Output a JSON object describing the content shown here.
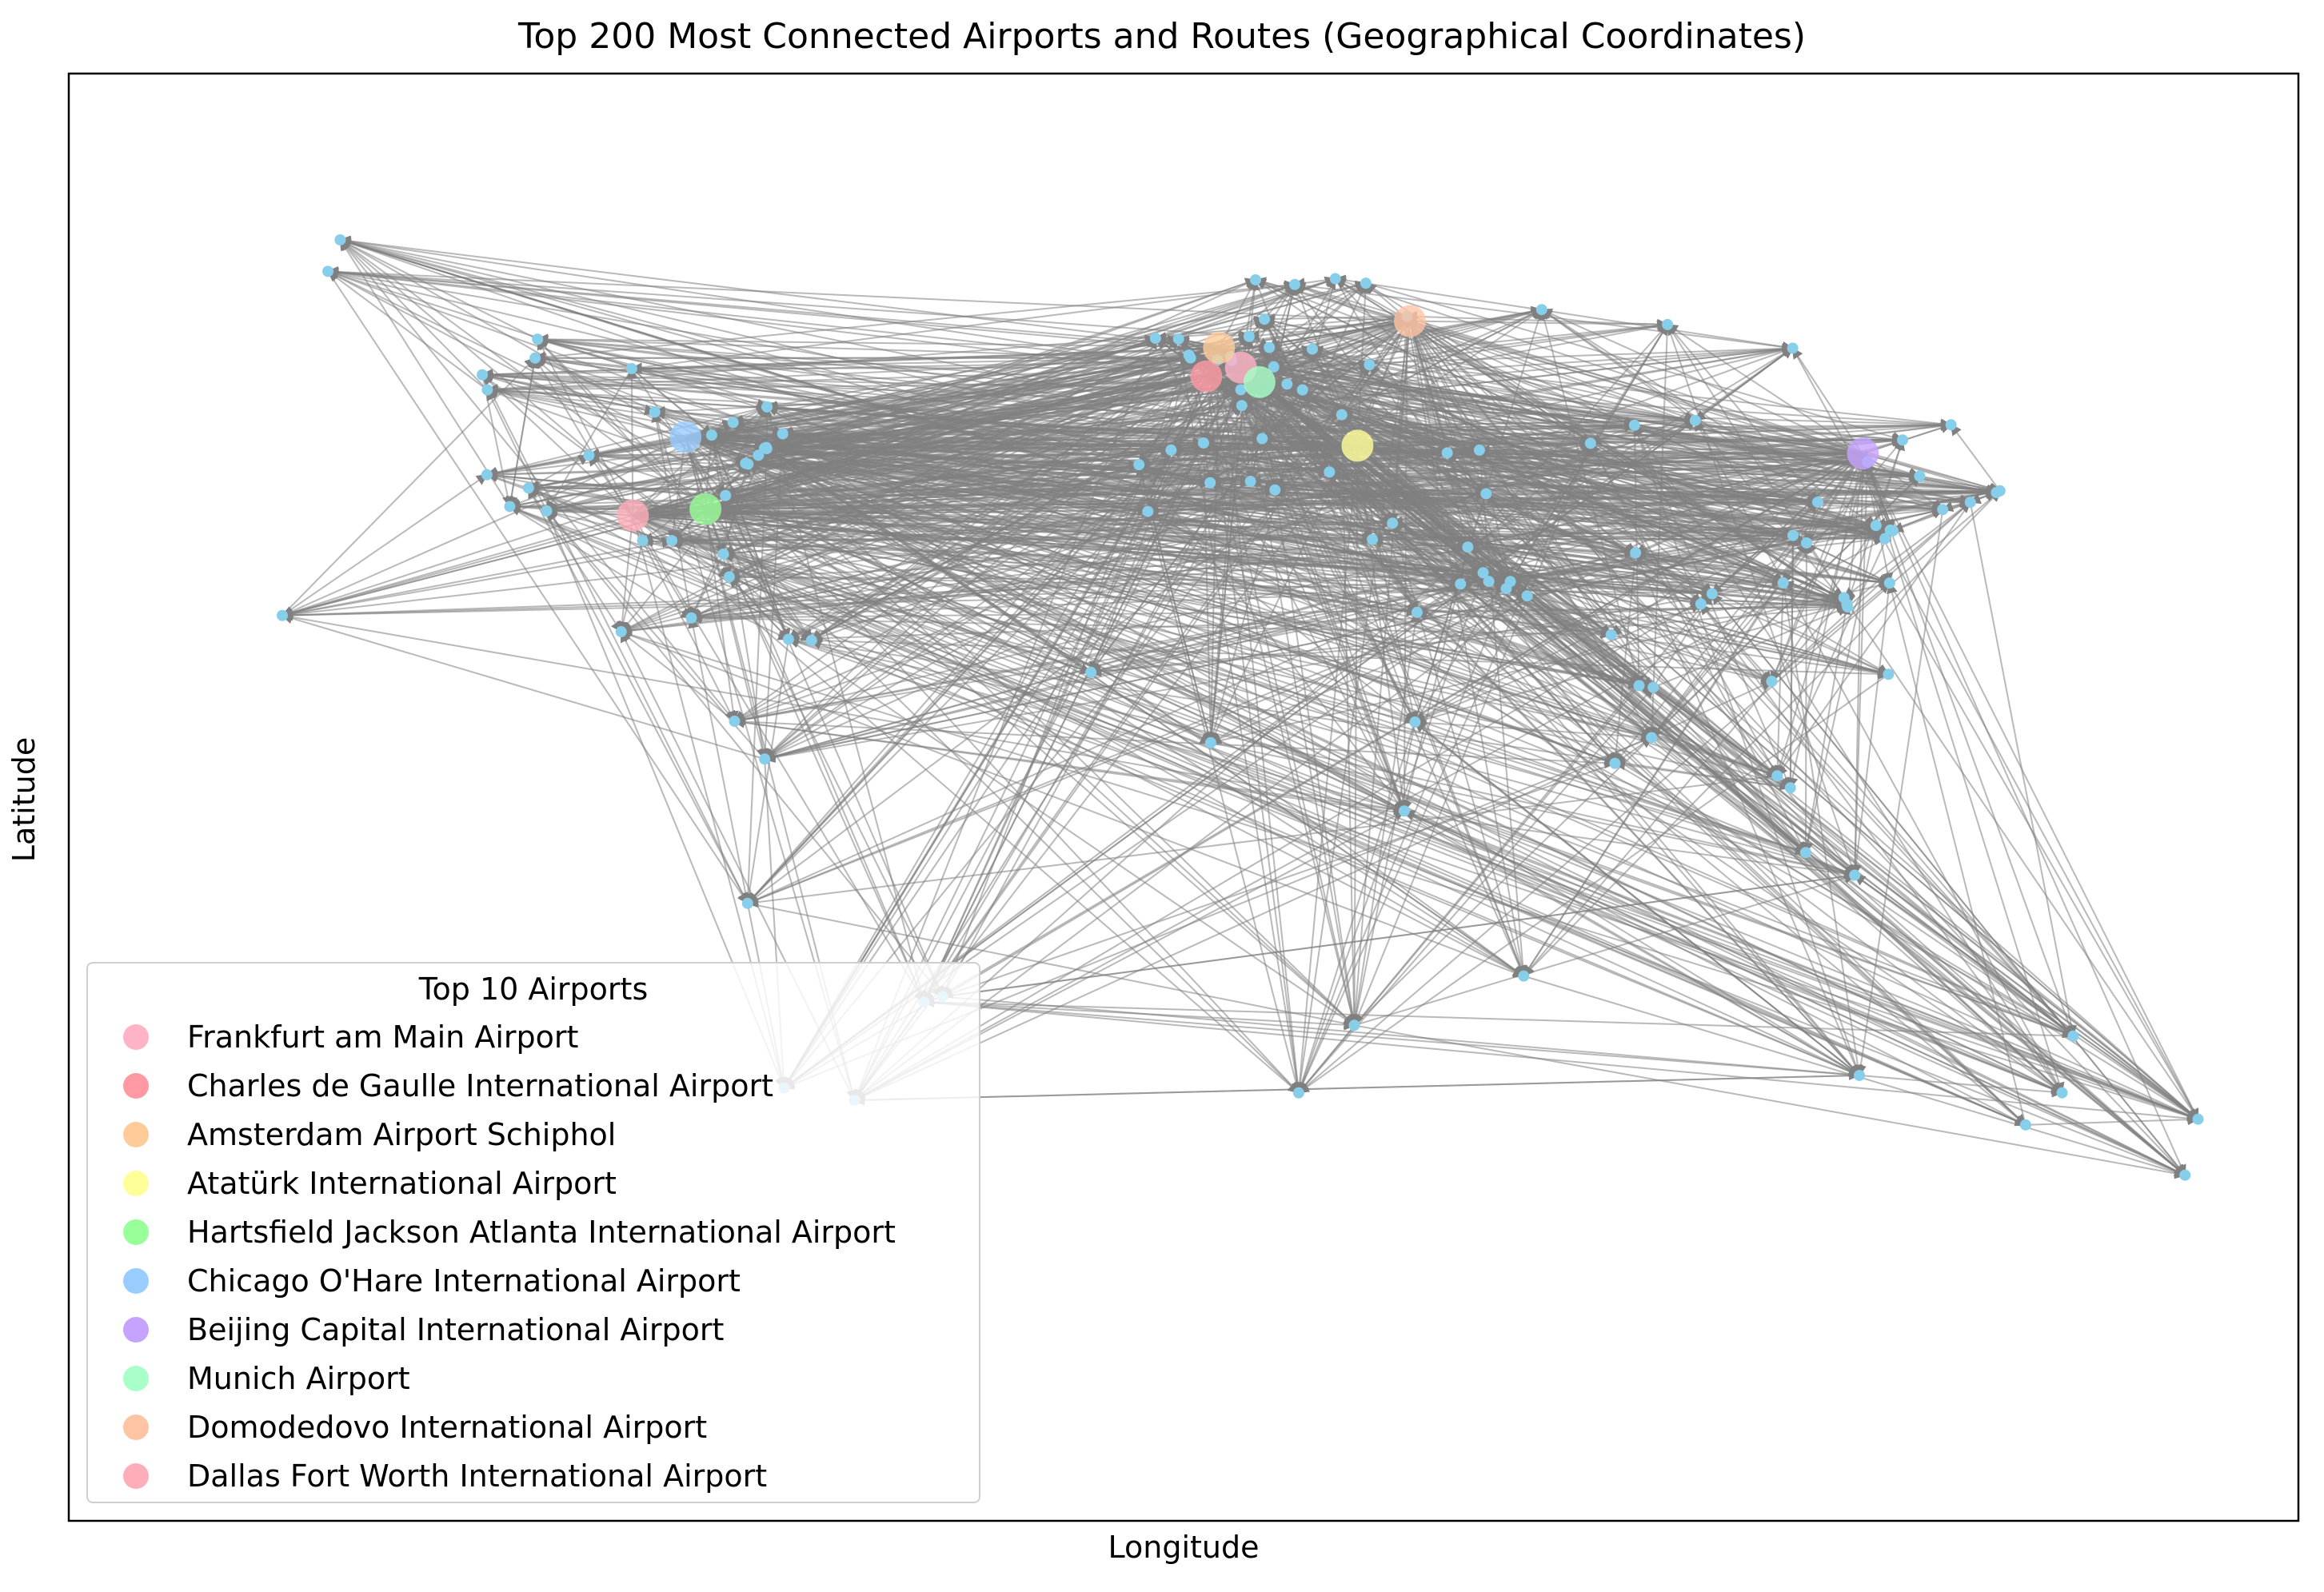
{
  "chart_data": {
    "type": "scatter",
    "title": "Top 200 Most Connected Airports and Routes (Geographical Coordinates)",
    "xlabel": "Longitude",
    "ylabel": "Latitude",
    "grid": false,
    "ticks": "hidden",
    "node_color": "#87ceeb",
    "edge_color": "#808080",
    "legend": {
      "title": "Top 10 Airports",
      "placement": "lower-left",
      "entries": [
        {
          "name": "Frankfurt am Main Airport",
          "color": "#ffb3c6",
          "lon": 8.57,
          "lat": 50.03
        },
        {
          "name": "Charles de Gaulle International Airport",
          "color": "#ff9aa2",
          "lon": 2.55,
          "lat": 49.01
        },
        {
          "name": "Amsterdam Airport Schiphol",
          "color": "#ffcc99",
          "lon": 4.76,
          "lat": 52.31
        },
        {
          "name": "Atatürk International Airport",
          "color": "#ffff99",
          "lon": 28.81,
          "lat": 40.98
        },
        {
          "name": "Hartsfield Jackson Atlanta International Airport",
          "color": "#99ff99",
          "lon": -84.43,
          "lat": 33.64
        },
        {
          "name": "Chicago O'Hare International Airport",
          "color": "#99ccff",
          "lon": -87.9,
          "lat": 41.98
        },
        {
          "name": "Beijing Capital International Airport",
          "color": "#c5a3ff",
          "lon": 116.58,
          "lat": 40.08
        },
        {
          "name": "Munich Airport",
          "color": "#a8ffc8",
          "lon": 11.79,
          "lat": 48.35
        },
        {
          "name": "Domodedovo International Airport",
          "color": "#ffc4a3",
          "lon": 37.91,
          "lat": 55.41
        },
        {
          "name": "Dallas Fort Worth International Airport",
          "color": "#ffadb9",
          "lon": -97.04,
          "lat": 32.9
        }
      ]
    },
    "airports": [
      {
        "lon": -157.92,
        "lat": 21.32
      },
      {
        "lon": -122.38,
        "lat": 37.62
      },
      {
        "lon": -118.41,
        "lat": 33.94
      },
      {
        "lon": -122.31,
        "lat": 47.45
      },
      {
        "lon": -123.18,
        "lat": 49.19
      },
      {
        "lon": -115.15,
        "lat": 36.08
      },
      {
        "lon": -112.01,
        "lat": 33.43
      },
      {
        "lon": -104.67,
        "lat": 39.86
      },
      {
        "lon": -93.22,
        "lat": 44.88
      },
      {
        "lon": -95.34,
        "lat": 29.98
      },
      {
        "lon": -90.26,
        "lat": 29.99
      },
      {
        "lon": -83.35,
        "lat": 42.21
      },
      {
        "lon": -80.94,
        "lat": 35.21
      },
      {
        "lon": -80.29,
        "lat": 25.79
      },
      {
        "lon": -81.31,
        "lat": 28.43
      },
      {
        "lon": -77.04,
        "lat": 38.85
      },
      {
        "lon": -77.46,
        "lat": 38.94
      },
      {
        "lon": -75.24,
        "lat": 39.87
      },
      {
        "lon": -74.17,
        "lat": 40.69
      },
      {
        "lon": -73.78,
        "lat": 40.64
      },
      {
        "lon": -73.87,
        "lat": 40.78
      },
      {
        "lon": -71.01,
        "lat": 42.36
      },
      {
        "lon": -79.63,
        "lat": 43.68
      },
      {
        "lon": -73.74,
        "lat": 45.47
      },
      {
        "lon": -99.07,
        "lat": 19.44
      },
      {
        "lon": -86.88,
        "lat": 21.04
      },
      {
        "lon": -79.38,
        "lat": 9.07
      },
      {
        "lon": -66.0,
        "lat": 18.44
      },
      {
        "lon": -70.01,
        "lat": 18.57
      },
      {
        "lon": -74.15,
        "lat": 4.7
      },
      {
        "lon": -77.11,
        "lat": -12.02
      },
      {
        "lon": -46.47,
        "lat": -23.43
      },
      {
        "lon": -43.25,
        "lat": -22.81
      },
      {
        "lon": -58.54,
        "lat": -34.82
      },
      {
        "lon": -70.79,
        "lat": -33.39
      },
      {
        "lon": -0.46,
        "lat": 51.47
      },
      {
        "lon": -0.19,
        "lat": 51.15
      },
      {
        "lon": -2.27,
        "lat": 53.35
      },
      {
        "lon": -6.27,
        "lat": 53.42
      },
      {
        "lon": -3.56,
        "lat": 40.47
      },
      {
        "lon": 2.08,
        "lat": 41.3
      },
      {
        "lon": 12.25,
        "lat": 41.8
      },
      {
        "lon": 8.72,
        "lat": 45.63
      },
      {
        "lon": 8.55,
        "lat": 47.46
      },
      {
        "lon": 16.57,
        "lat": 48.11
      },
      {
        "lon": 12.65,
        "lat": 55.63
      },
      {
        "lon": 11.1,
        "lat": 60.19
      },
      {
        "lon": 17.92,
        "lat": 59.65
      },
      {
        "lon": 24.96,
        "lat": 60.32
      },
      {
        "lon": 20.97,
        "lat": 52.17
      },
      {
        "lon": 14.26,
        "lat": 50.1
      },
      {
        "lon": 19.26,
        "lat": 47.44
      },
      {
        "lon": 4.48,
        "lat": 50.9
      },
      {
        "lon": 6.96,
        "lat": 50.87
      },
      {
        "lon": 6.77,
        "lat": 51.29
      },
      {
        "lon": 13.5,
        "lat": 52.36
      },
      {
        "lon": 9.99,
        "lat": 53.63
      },
      {
        "lon": 23.94,
        "lat": 37.94
      },
      {
        "lon": -9.14,
        "lat": 38.78
      },
      {
        "lon": 14.48,
        "lat": 35.86
      },
      {
        "lon": 37.41,
        "lat": 55.97
      },
      {
        "lon": 30.26,
        "lat": 59.8
      },
      {
        "lon": 30.89,
        "lat": 50.35
      },
      {
        "lon": 26.08,
        "lat": 44.57
      },
      {
        "lon": 31.4,
        "lat": 30.12
      },
      {
        "lon": 34.89,
        "lat": 32.01
      },
      {
        "lon": 55.36,
        "lat": 25.25
      },
      {
        "lon": 51.61,
        "lat": 25.27
      },
      {
        "lon": 54.65,
        "lat": 24.43
      },
      {
        "lon": 46.7,
        "lat": 24.96
      },
      {
        "lon": 39.16,
        "lat": 21.68
      },
      {
        "lon": 50.63,
        "lat": 26.27
      },
      {
        "lon": 58.28,
        "lat": 23.59
      },
      {
        "lon": 47.97,
        "lat": 29.24
      },
      {
        "lon": 51.15,
        "lat": 35.42
      },
      {
        "lon": 72.87,
        "lat": 19.09
      },
      {
        "lon": 77.1,
        "lat": 28.57
      },
      {
        "lon": 77.71,
        "lat": 13.2
      },
      {
        "lon": 80.17,
        "lat": 12.99
      },
      {
        "lon": 88.45,
        "lat": 22.65
      },
      {
        "lon": 79.88,
        "lat": 7.18
      },
      {
        "lon": 90.4,
        "lat": 23.84
      },
      {
        "lon": 100.75,
        "lat": 13.69
      },
      {
        "lon": 103.99,
        "lat": 1.36
      },
      {
        "lon": 101.71,
        "lat": 2.75
      },
      {
        "lon": 106.66,
        "lat": -6.13
      },
      {
        "lon": 115.17,
        "lat": -8.75
      },
      {
        "lon": 121.02,
        "lat": 14.51
      },
      {
        "lon": 113.92,
        "lat": 22.31
      },
      {
        "lon": 113.3,
        "lat": 23.39
      },
      {
        "lon": 113.81,
        "lat": 22.64
      },
      {
        "lon": 121.81,
        "lat": 31.14
      },
      {
        "lon": 121.34,
        "lat": 31.2
      },
      {
        "lon": 121.23,
        "lat": 25.08
      },
      {
        "lon": 126.45,
        "lat": 37.46
      },
      {
        "lon": 140.39,
        "lat": 35.76
      },
      {
        "lon": 139.78,
        "lat": 35.55
      },
      {
        "lon": 135.24,
        "lat": 34.43
      },
      {
        "lon": 130.45,
        "lat": 33.59
      },
      {
        "lon": 104.44,
        "lat": 30.58
      },
      {
        "lon": 108.75,
        "lat": 34.45
      },
      {
        "lon": 102.74,
        "lat": 25.1
      },
      {
        "lon": 106.8,
        "lat": 29.72
      },
      {
        "lon": 120.43,
        "lat": 30.23
      },
      {
        "lon": 118.86,
        "lat": 31.74
      },
      {
        "lon": 117.36,
        "lat": 39.12
      },
      {
        "lon": 123.48,
        "lat": 41.64
      },
      {
        "lon": 87.47,
        "lat": 43.91
      },
      {
        "lon": 151.18,
        "lat": -33.95
      },
      {
        "lon": 144.84,
        "lat": -37.67
      },
      {
        "lon": 153.12,
        "lat": -27.38
      },
      {
        "lon": 115.97,
        "lat": -31.94
      },
      {
        "lon": 174.79,
        "lat": -37.01
      },
      {
        "lon": 172.53,
        "lat": -43.49
      },
      {
        "lon": 28.25,
        "lat": -26.14
      },
      {
        "lon": 18.6,
        "lat": -33.96
      },
      {
        "lon": 36.93,
        "lat": -1.32
      },
      {
        "lon": 38.8,
        "lat": 8.98
      },
      {
        "lon": 3.32,
        "lat": 6.58
      },
      {
        "lon": -7.59,
        "lat": 33.37
      },
      {
        "lon": -17.49,
        "lat": 14.74
      },
      {
        "lon": 10.23,
        "lat": 36.85
      },
      {
        "lon": 3.22,
        "lat": 36.69
      },
      {
        "lon": 57.68,
        "lat": -20.43
      },
      {
        "lon": 73.53,
        "lat": 4.19
      },
      {
        "lon": 69.28,
        "lat": 41.26
      },
      {
        "lon": 76.93,
        "lat": 43.35
      },
      {
        "lon": 44.4,
        "lat": 40.15
      },
      {
        "lon": 49.99,
        "lat": 40.47
      },
      {
        "lon": 82.65,
        "lat": 55.01
      },
      {
        "lon": 60.8,
        "lat": 56.74
      },
      {
        "lon": 131.89,
        "lat": 43.4
      },
      {
        "lon": 104.39,
        "lat": 52.27
      },
      {
        "lon": -149.99,
        "lat": 61.17
      },
      {
        "lon": -147.86,
        "lat": 64.82
      },
      {
        "lon": -114.02,
        "lat": 51.13
      },
      {
        "lon": -113.58,
        "lat": 53.31
      },
      {
        "lon": -97.24,
        "lat": 49.91
      }
    ]
  }
}
